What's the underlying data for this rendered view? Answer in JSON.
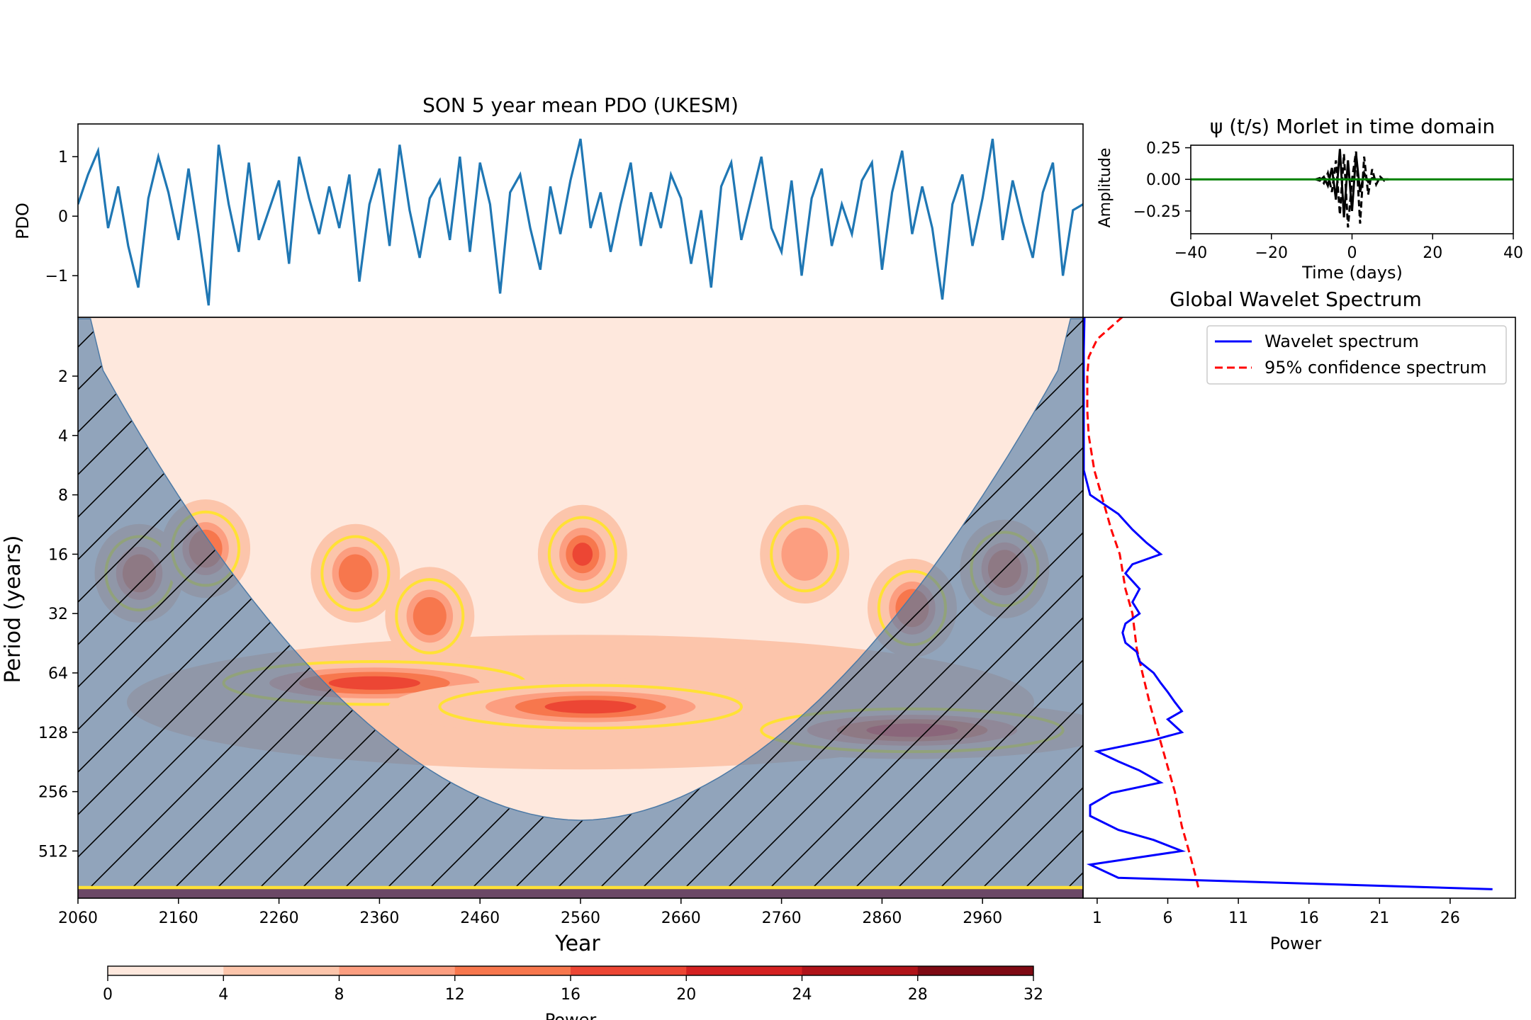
{
  "chart_data": [
    {
      "type": "line",
      "title": "SON 5 year mean PDO (UKESM)",
      "ylabel": "PDO",
      "xlim": [
        2060,
        3060
      ],
      "ylim": [
        -1.7,
        1.55
      ],
      "yticks": [
        -1,
        0,
        1
      ],
      "series": [
        {
          "color": "#1f77b4",
          "x": [
            2060,
            2070,
            2080,
            2090,
            2100,
            2110,
            2120,
            2130,
            2140,
            2150,
            2160,
            2170,
            2180,
            2190,
            2200,
            2210,
            2220,
            2230,
            2240,
            2250,
            2260,
            2270,
            2280,
            2290,
            2300,
            2310,
            2320,
            2330,
            2340,
            2350,
            2360,
            2370,
            2380,
            2390,
            2400,
            2410,
            2420,
            2430,
            2440,
            2450,
            2460,
            2470,
            2480,
            2490,
            2500,
            2510,
            2520,
            2530,
            2540,
            2550,
            2560,
            2570,
            2580,
            2590,
            2600,
            2610,
            2620,
            2630,
            2640,
            2650,
            2660,
            2670,
            2680,
            2690,
            2700,
            2710,
            2720,
            2730,
            2740,
            2750,
            2760,
            2770,
            2780,
            2790,
            2800,
            2810,
            2820,
            2830,
            2840,
            2850,
            2860,
            2870,
            2880,
            2890,
            2900,
            2910,
            2920,
            2930,
            2940,
            2950,
            2960,
            2970,
            2980,
            2990,
            3000,
            3010,
            3020,
            3030,
            3040,
            3050,
            3060
          ],
          "y": [
            0.2,
            0.7,
            1.1,
            -0.2,
            0.5,
            -0.5,
            -1.2,
            0.3,
            1.0,
            0.4,
            -0.4,
            0.8,
            -0.3,
            -1.5,
            1.2,
            0.2,
            -0.6,
            0.9,
            -0.4,
            0.1,
            0.6,
            -0.8,
            1.0,
            0.3,
            -0.3,
            0.5,
            -0.2,
            0.7,
            -1.1,
            0.2,
            0.8,
            -0.5,
            1.2,
            0.1,
            -0.7,
            0.3,
            0.6,
            -0.4,
            1.0,
            -0.6,
            0.9,
            0.2,
            -1.3,
            0.4,
            0.7,
            -0.2,
            -0.9,
            0.5,
            -0.3,
            0.6,
            1.3,
            -0.2,
            0.4,
            -0.6,
            0.2,
            0.9,
            -0.5,
            0.4,
            -0.2,
            0.7,
            0.3,
            -0.8,
            0.1,
            -1.2,
            0.5,
            0.9,
            -0.4,
            0.3,
            1.0,
            -0.2,
            -0.6,
            0.6,
            -1.0,
            0.3,
            0.8,
            -0.5,
            0.2,
            -0.3,
            0.6,
            0.9,
            -0.9,
            0.4,
            1.1,
            -0.3,
            0.5,
            -0.2,
            -1.4,
            0.2,
            0.7,
            -0.5,
            0.3,
            1.3,
            -0.4,
            0.6,
            -0.1,
            -0.7,
            0.4,
            0.9,
            -1.0,
            0.1,
            0.2
          ]
        }
      ]
    },
    {
      "type": "line",
      "title": "ψ (t/s) Morlet in time domain",
      "xlabel": "Time (days)",
      "ylabel": "Amplitude",
      "xlim": [
        -40,
        40
      ],
      "ylim": [
        -0.43,
        0.27
      ],
      "xticks": [
        -40,
        -20,
        0,
        20,
        40
      ],
      "yticks": [
        -0.25,
        0.0,
        0.25
      ],
      "ytick_labels": [
        "−0.25",
        "0.00",
        "0.25"
      ],
      "series": [
        {
          "style": "dashed",
          "color": "#000000",
          "x": [
            -9,
            -8,
            -7,
            -6,
            -5,
            -4,
            -3,
            -2,
            -1,
            0,
            1,
            2,
            3,
            4,
            5,
            6,
            7,
            8,
            9
          ],
          "y": [
            0,
            0.01,
            -0.03,
            0.05,
            -0.1,
            0.15,
            -0.28,
            0.2,
            -0.38,
            0.0,
            0.22,
            -0.35,
            0.18,
            -0.12,
            0.08,
            -0.04,
            0.02,
            -0.01,
            0
          ]
        },
        {
          "style": "solid",
          "color": "#000000",
          "x": [
            -9,
            -8,
            -7,
            -6,
            -5,
            -4,
            -3,
            -2,
            -1,
            0,
            1,
            2,
            3,
            4,
            5,
            6,
            7,
            8,
            9
          ],
          "y": [
            0,
            -0.01,
            0.02,
            -0.05,
            0.09,
            -0.16,
            0.24,
            -0.3,
            0.15,
            -0.25,
            0.2,
            -0.1,
            0.05,
            -0.02,
            0.01,
            0,
            0,
            0,
            0
          ]
        },
        {
          "style": "solid",
          "color": "#008000",
          "x": [
            -40,
            40
          ],
          "y": [
            0,
            0
          ]
        }
      ]
    },
    {
      "type": "heatmap",
      "xlabel": "Year",
      "ylabel": "Period (years)",
      "xlim": [
        2060,
        3060
      ],
      "x_ticks": [
        2060,
        2160,
        2260,
        2360,
        2460,
        2560,
        2660,
        2760,
        2860,
        2960
      ],
      "y_scale": "log2",
      "y_ticks": [
        2,
        4,
        8,
        16,
        32,
        64,
        128,
        256,
        512
      ],
      "colorbar": {
        "label": "Power",
        "ticks": [
          0,
          4,
          8,
          12,
          16,
          20,
          24,
          28,
          32
        ],
        "colors": [
          "#fee8dd",
          "#fcc5ab",
          "#fc9e80",
          "#f7774d",
          "#ec4634",
          "#d42121",
          "#b01319",
          "#7e0a13"
        ]
      },
      "power_blobs": [
        {
          "year": 2121,
          "period": 20,
          "level": 3
        },
        {
          "year": 2187,
          "period": 15,
          "level": 3
        },
        {
          "year": 2336,
          "period": 20,
          "level": 3
        },
        {
          "year": 2410,
          "period": 33,
          "level": 3
        },
        {
          "year": 2562,
          "period": 16,
          "level": 4
        },
        {
          "year": 2783,
          "period": 16,
          "level": 2
        },
        {
          "year": 2890,
          "period": 30,
          "level": 3
        },
        {
          "year": 2982,
          "period": 19,
          "level": 3
        },
        {
          "year": 2355,
          "period": 72,
          "level": 4
        },
        {
          "year": 2570,
          "period": 95,
          "level": 4
        },
        {
          "year": 2890,
          "period": 125,
          "level": 4
        }
      ]
    },
    {
      "type": "line",
      "title": "Global Wavelet Spectrum",
      "xlabel": "Power",
      "xlim": [
        0,
        32
      ],
      "xticks": [
        1,
        6,
        11,
        16,
        21,
        26
      ],
      "y_scale": "log2",
      "legend_position": "top-right",
      "series": [
        {
          "name": "Wavelet spectrum",
          "color": "#0000ff",
          "style": "solid",
          "period": [
            1,
            1.5,
            2,
            3,
            4,
            6,
            8,
            10,
            12,
            14,
            16,
            18,
            20,
            24,
            28,
            32,
            36,
            40,
            45,
            50,
            56,
            64,
            72,
            80,
            90,
            100,
            110,
            128,
            140,
            160,
            180,
            200,
            230,
            260,
            300,
            340,
            400,
            450,
            512,
            600,
            700,
            800
          ],
          "power": [
            0.1,
            0.05,
            0.05,
            0.05,
            0.05,
            0.05,
            0.5,
            2.5,
            3.5,
            4.5,
            5.5,
            3.5,
            3.0,
            4.0,
            3.5,
            4.0,
            3.0,
            2.8,
            3.0,
            3.8,
            4.0,
            5.0,
            5.5,
            6.0,
            6.5,
            7.0,
            6.0,
            7.0,
            5.0,
            1.0,
            2.5,
            4.0,
            5.5,
            2.0,
            0.5,
            0.5,
            2.5,
            5.0,
            7.0,
            0.5,
            2.5,
            29.0
          ]
        },
        {
          "name": "95% confidence spectrum",
          "color": "#ff0000",
          "style": "dashed",
          "period": [
            1,
            1.3,
            1.6,
            2,
            3,
            4,
            6,
            8,
            12,
            16,
            24,
            32,
            48,
            64,
            96,
            128,
            192,
            256,
            384,
            512,
            700,
            800
          ],
          "power": [
            2.8,
            1.0,
            0.4,
            0.3,
            0.3,
            0.4,
            0.8,
            1.3,
            2.0,
            2.6,
            3.0,
            3.5,
            3.8,
            4.2,
            4.8,
            5.3,
            6.0,
            6.5,
            7.0,
            7.5,
            8.0,
            8.2
          ]
        }
      ]
    }
  ]
}
